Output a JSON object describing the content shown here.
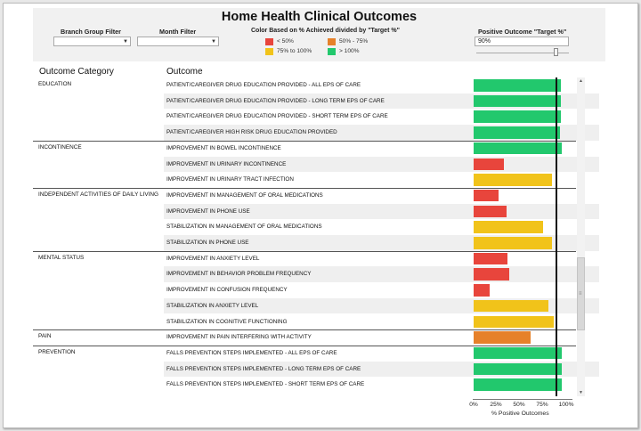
{
  "dashboard": {
    "title": "Home Health Clinical Outcomes",
    "filters": {
      "branch_group_label": "Branch Group Filter",
      "branch_group_value": "",
      "month_label": "Month Filter",
      "month_value": ""
    },
    "legend": {
      "title": "Color Based on % Achieved divided by \"Target %\"",
      "items": [
        {
          "label": "< 50%",
          "color": "#e8453c"
        },
        {
          "label": "50% - 75%",
          "color": "#e6812a"
        },
        {
          "label": "75% to 100%",
          "color": "#f1c31a"
        },
        {
          "label": "> 100%",
          "color": "#22c86d"
        }
      ]
    },
    "target": {
      "label": "Positive Outcome \"Target %\"",
      "value": "90%"
    },
    "columns": {
      "category": "Outcome Category",
      "outcome": "Outcome"
    },
    "x_axis": {
      "ticks": [
        "0%",
        "25%",
        "50%",
        "75%",
        "100%"
      ],
      "title": "% Positive Outcomes"
    }
  },
  "chart_data": {
    "type": "bar",
    "orientation": "horizontal",
    "xlabel": "% Positive Outcomes",
    "xlim": [
      0,
      100
    ],
    "target_percent": 90,
    "categories": [
      {
        "name": "EDUCATION",
        "outcomes": [
          {
            "label": "PATIENT/CAREGIVER DRUG EDUCATION PROVIDED - ALL EPS OF CARE",
            "value": 96,
            "color": "#22c86d"
          },
          {
            "label": "PATIENT/CAREGIVER DRUG EDUCATION PROVIDED - LONG TERM EPS OF CARE",
            "value": 96,
            "color": "#22c86d"
          },
          {
            "label": "PATIENT/CAREGIVER DRUG EDUCATION PROVIDED - SHORT TERM EPS OF CARE",
            "value": 96,
            "color": "#22c86d"
          },
          {
            "label": "PATIENT/CAREGIVER HIGH RISK DRUG EDUCATION PROVIDED",
            "value": 95,
            "color": "#22c86d"
          }
        ]
      },
      {
        "name": "INCONTINENCE",
        "outcomes": [
          {
            "label": "IMPROVEMENT IN BOWEL INCONTINENCE",
            "value": 97,
            "color": "#22c86d"
          },
          {
            "label": "IMPROVEMENT IN URINARY INCONTINENCE",
            "value": 33,
            "color": "#e8453c"
          },
          {
            "label": "IMPROVEMENT IN URINARY TRACT INFECTION",
            "value": 86,
            "color": "#f1c31a"
          }
        ]
      },
      {
        "name": "INDEPENDENT ACTIVITIES OF DAILY LIVING",
        "outcomes": [
          {
            "label": "IMPROVEMENT IN MANAGEMENT OF ORAL MEDICATIONS",
            "value": 27,
            "color": "#e8453c"
          },
          {
            "label": "IMPROVEMENT IN PHONE USE",
            "value": 36,
            "color": "#e8453c"
          },
          {
            "label": "STABILIZATION IN MANAGEMENT OF ORAL MEDICATIONS",
            "value": 76,
            "color": "#f1c31a"
          },
          {
            "label": "STABILIZATION IN PHONE USE",
            "value": 86,
            "color": "#f1c31a"
          }
        ]
      },
      {
        "name": "MENTAL STATUS",
        "outcomes": [
          {
            "label": "IMPROVEMENT IN ANXIETY LEVEL",
            "value": 37,
            "color": "#e8453c"
          },
          {
            "label": "IMPROVEMENT IN BEHAVIOR PROBLEM FREQUENCY",
            "value": 39,
            "color": "#e8453c"
          },
          {
            "label": "IMPROVEMENT IN CONFUSION FREQUENCY",
            "value": 18,
            "color": "#e8453c"
          },
          {
            "label": "STABILIZATION IN ANXIETY LEVEL",
            "value": 82,
            "color": "#f1c31a"
          },
          {
            "label": "STABILIZATION IN COGNITIVE FUNCTIONING",
            "value": 88,
            "color": "#f1c31a"
          }
        ]
      },
      {
        "name": "PAIN",
        "outcomes": [
          {
            "label": "IMPROVEMENT IN PAIN INTERFERING WITH ACTIVITY",
            "value": 63,
            "color": "#e6812a"
          }
        ]
      },
      {
        "name": "PREVENTION",
        "outcomes": [
          {
            "label": "FALLS PREVENTION STEPS IMPLEMENTED - ALL EPS OF CARE",
            "value": 97,
            "color": "#22c86d"
          },
          {
            "label": "FALLS PREVENTION STEPS IMPLEMENTED - LONG TERM EPS OF CARE",
            "value": 97,
            "color": "#22c86d"
          },
          {
            "label": "FALLS PREVENTION STEPS IMPLEMENTED - SHORT TERM EPS OF CARE",
            "value": 97,
            "color": "#22c86d"
          }
        ]
      }
    ]
  }
}
